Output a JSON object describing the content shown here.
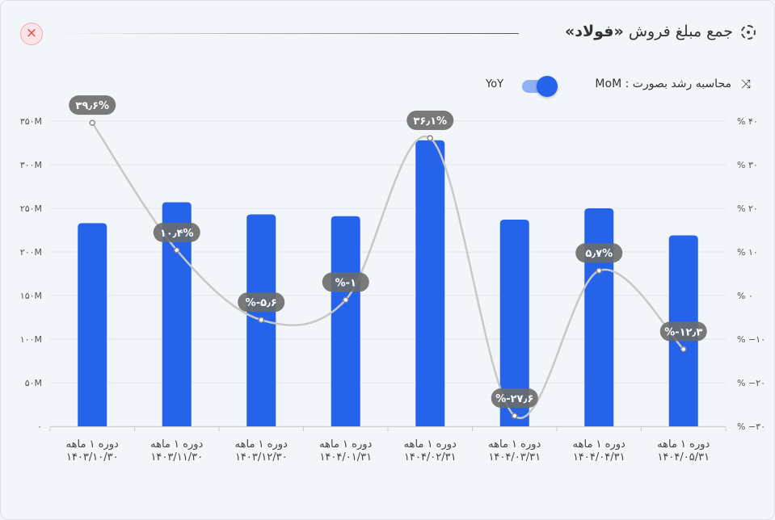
{
  "header": {
    "title_prefix": "جمع مبلغ فروش",
    "title_bold": "«فولاد»",
    "growth_label": "محاسبه رشد بصورت : MoM",
    "toggle_alt": "YoY",
    "close_label": "×"
  },
  "colors": {
    "bar": "#2563eb",
    "line": "#c8c8c8",
    "label_bg": "#6b6b6b"
  },
  "chart_data": {
    "type": "bar",
    "title": "جمع مبلغ فروش «فولاد»",
    "categories": [
      [
        "دوره ۱ ماهه",
        "۱۴۰۳/۱۰/۳۰"
      ],
      [
        "دوره ۱ ماهه",
        "۱۴۰۳/۱۱/۳۰"
      ],
      [
        "دوره ۱ ماهه",
        "۱۴۰۳/۱۲/۳۰"
      ],
      [
        "دوره ۱ ماهه",
        "۱۴۰۴/۰۱/۳۱"
      ],
      [
        "دوره ۱ ماهه",
        "۱۴۰۴/۰۲/۳۱"
      ],
      [
        "دوره ۱ ماهه",
        "۱۴۰۴/۰۳/۳۱"
      ],
      [
        "دوره ۱ ماهه",
        "۱۴۰۴/۰۴/۳۱"
      ],
      [
        "دوره ۱ ماهه",
        "۱۴۰۴/۰۵/۳۱"
      ]
    ],
    "series": [
      {
        "name": "sales",
        "type": "bar",
        "unit": "M",
        "values": [
          233,
          257,
          243,
          241,
          328,
          237,
          250,
          219
        ]
      },
      {
        "name": "growth",
        "type": "line",
        "axis": "right",
        "values": [
          39.6,
          10.4,
          -5.6,
          -1,
          36.1,
          -27.6,
          5.7,
          -12.3
        ],
        "labels": [
          "۳۹٫۶%",
          "۱۰٫۴%",
          "%-۵٫۶",
          "%-۱",
          "۳۶٫۱%",
          "%-۲۷٫۶",
          "۵٫۷%",
          "%-۱۲٫۳"
        ]
      }
    ],
    "ylim": [
      0,
      350
    ],
    "y2lim": [
      -30,
      40
    ],
    "yticks": [
      0,
      50,
      100,
      150,
      200,
      250,
      300,
      350
    ],
    "ytick_labels": [
      "۰",
      "۵۰M",
      "۱۰۰M",
      "۱۵۰M",
      "۲۰۰M",
      "۲۵۰M",
      "۳۰۰M",
      "۳۵۰M"
    ],
    "y2ticks": [
      -30,
      -20,
      -10,
      0,
      10,
      20,
      30,
      40
    ],
    "y2tick_labels": [
      "% −۳۰",
      "% −۲۰",
      "% −۱۰",
      "% ۰",
      "% ۱۰",
      "% ۲۰",
      "% ۳۰",
      "% ۴۰"
    ],
    "grid": true
  }
}
